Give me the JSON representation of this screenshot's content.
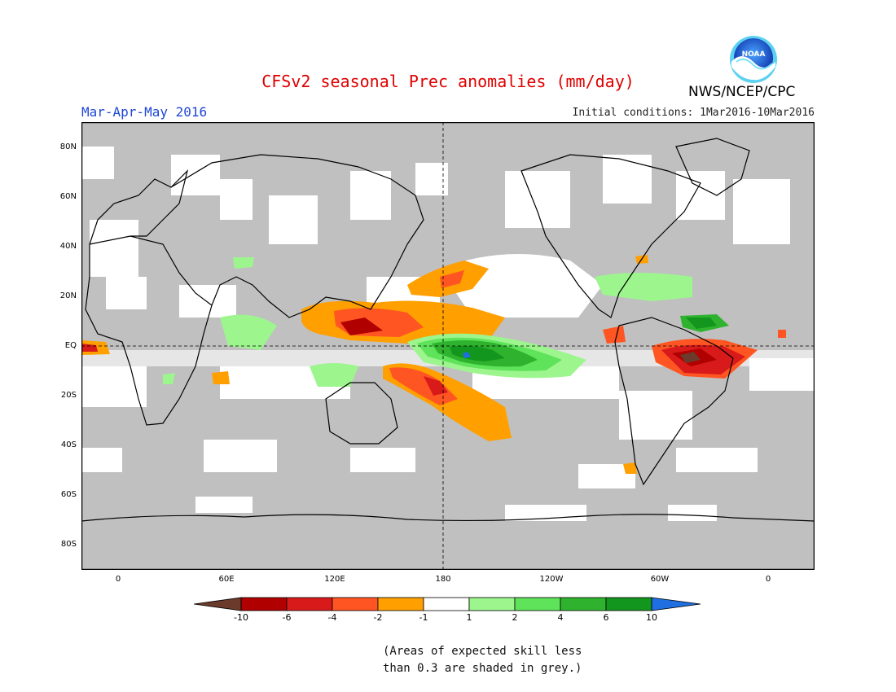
{
  "header": {
    "title": "CFSv2 seasonal Prec anomalies (mm/day)",
    "season": "Mar-Apr-May 2016",
    "initial_conditions": "Initial conditions: 1Mar2016-10Mar2016",
    "agency": "NWS/NCEP/CPC",
    "logo_text": "NOAA"
  },
  "map": {
    "lat_labels": [
      "80N",
      "60N",
      "40N",
      "20N",
      "EQ",
      "20S",
      "40S",
      "60S",
      "80S"
    ],
    "lon_labels": [
      "0",
      "60E",
      "120E",
      "180",
      "120W",
      "60W",
      "0"
    ],
    "colors": {
      "skill_grey": "#c0c0c0",
      "dry_extreme": "#6b3a2a",
      "dry_6": "#b10000",
      "dry_4": "#d81a1a",
      "dry_2": "#ff5522",
      "dry_1": "#ff9f00",
      "neutral": "#ffffff",
      "wet_1": "#9df58e",
      "wet_2": "#5ee35a",
      "wet_4": "#2fb32f",
      "wet_6": "#13961e",
      "wet_extreme": "#1f6fe0"
    }
  },
  "colorbar": {
    "labels": [
      "-10",
      "-6",
      "-4",
      "-2",
      "-1",
      "1",
      "2",
      "4",
      "6",
      "10"
    ],
    "colors": [
      "#b10000",
      "#d81a1a",
      "#ff5522",
      "#ff9f00",
      "#ffffff",
      "#9df58e",
      "#5ee35a",
      "#2fb32f",
      "#13961e"
    ]
  },
  "note": {
    "line1": "(Areas of expected skill less",
    "line2": "than 0.3 are shaded in grey.)"
  }
}
